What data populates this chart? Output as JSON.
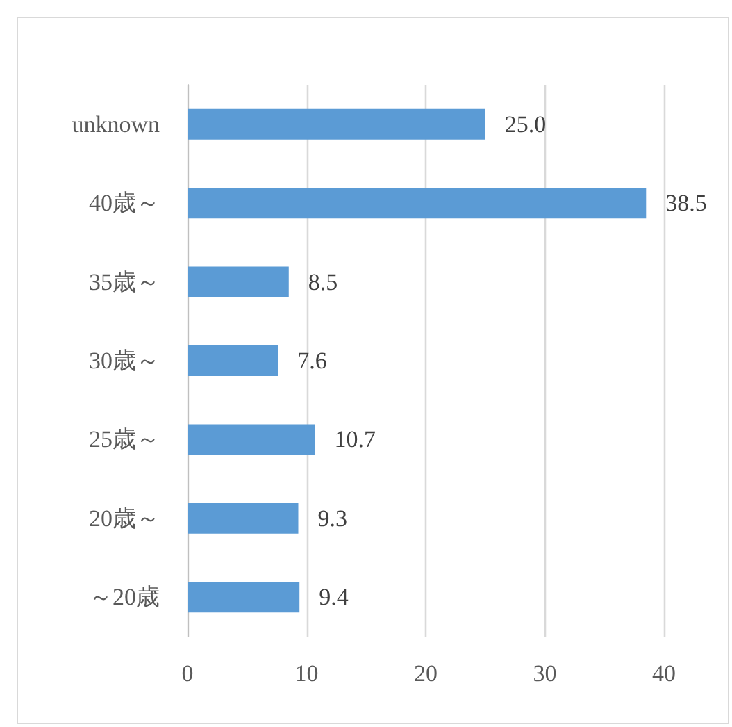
{
  "chart_data": {
    "type": "bar",
    "orientation": "horizontal",
    "categories": [
      "unknown",
      "40歳～",
      "35歳～",
      "30歳～",
      "25歳～",
      "20歳～",
      "～20歳"
    ],
    "values": [
      25.0,
      38.5,
      8.5,
      7.6,
      10.7,
      9.3,
      9.4
    ],
    "value_labels": [
      "25.0",
      "38.5",
      "8.5",
      "7.6",
      "10.7",
      "9.3",
      "9.4"
    ],
    "color": "#5b9bd5",
    "xlim": [
      0,
      40
    ],
    "xticks": [
      0,
      10,
      20,
      30,
      40
    ],
    "grid": "x"
  }
}
